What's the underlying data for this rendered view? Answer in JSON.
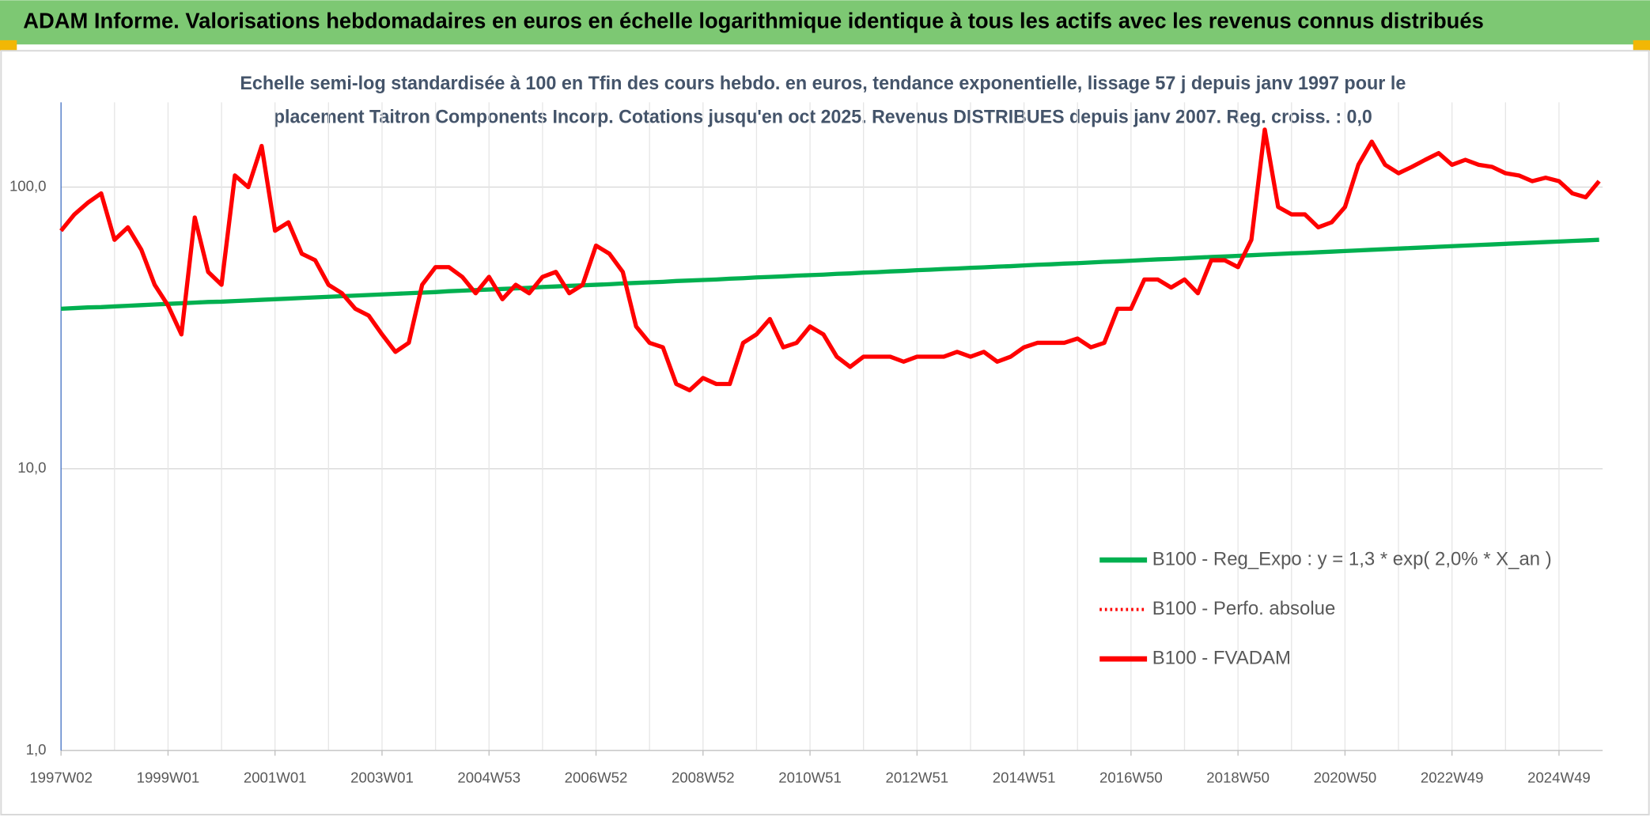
{
  "chart_data": {
    "type": "line",
    "title": "ADAM Informe. Valorisations hebdomadaires en euros en échelle logarithmique identique à tous les actifs avec les revenus connus distribués",
    "subtitle": [
      "Echelle semi-log standardisée à 100 en Tfin des cours hebdo. en euros, tendance exponentielle, lissage 57 j depuis janv 1997 pour le",
      "placement Taitron Components Incorp. Cotations jusqu'en oct 2025. Revenus DISTRIBUES depuis janv 2007. Reg. croiss. : 0,0"
    ],
    "categories": [
      "1997W02",
      null,
      null,
      null,
      null,
      null,
      null,
      null,
      "1999W01",
      null,
      null,
      null,
      null,
      null,
      null,
      null,
      "2001W01",
      null,
      null,
      null,
      null,
      null,
      null,
      null,
      "2003W01",
      null,
      null,
      null,
      null,
      null,
      null,
      null,
      "2004W53",
      null,
      null,
      null,
      null,
      null,
      null,
      null,
      "2006W52",
      null,
      null,
      null,
      null,
      null,
      null,
      null,
      "2008W52",
      null,
      null,
      null,
      null,
      null,
      null,
      null,
      "2010W51",
      null,
      null,
      null,
      null,
      null,
      null,
      null,
      "2012W51",
      null,
      null,
      null,
      null,
      null,
      null,
      null,
      "2014W51",
      null,
      null,
      null,
      null,
      null,
      null,
      null,
      "2016W50",
      null,
      null,
      null,
      null,
      null,
      null,
      null,
      "2018W50",
      null,
      null,
      null,
      null,
      null,
      null,
      null,
      "2020W50",
      null,
      null,
      null,
      null,
      null,
      null,
      null,
      "2022W49",
      null,
      null,
      null,
      null,
      null,
      null,
      null,
      "2024W49",
      null,
      null,
      null
    ],
    "series": [
      {
        "name": "B100 - Reg_Expo : y = 1,3 * exp( 2,0% *  X_an )",
        "color": "#00b050",
        "style": "solid",
        "values": [
          37.0,
          37.2,
          37.4,
          37.5,
          37.7,
          37.9,
          38.1,
          38.3,
          38.5,
          38.7,
          38.9,
          39.1,
          39.2,
          39.4,
          39.6,
          39.8,
          40.0,
          40.2,
          40.4,
          40.6,
          40.8,
          41.0,
          41.2,
          41.4,
          41.6,
          41.8,
          42.0,
          42.2,
          42.4,
          42.7,
          42.9,
          43.1,
          43.3,
          43.5,
          43.7,
          43.9,
          44.2,
          44.4,
          44.6,
          44.8,
          45.0,
          45.2,
          45.5,
          45.7,
          45.9,
          46.1,
          46.4,
          46.6,
          46.8,
          47.0,
          47.3,
          47.5,
          47.8,
          48.0,
          48.2,
          48.5,
          48.7,
          48.9,
          49.2,
          49.4,
          49.7,
          49.9,
          50.2,
          50.4,
          50.7,
          50.9,
          51.2,
          51.4,
          51.7,
          51.9,
          52.2,
          52.4,
          52.7,
          53.0,
          53.2,
          53.5,
          53.7,
          54.0,
          54.3,
          54.5,
          54.8,
          55.1,
          55.4,
          55.6,
          55.9,
          56.2,
          56.5,
          56.7,
          57.0,
          57.3,
          57.6,
          57.9,
          58.2,
          58.4,
          58.7,
          59.0,
          59.3,
          59.6,
          59.9,
          60.2,
          60.5,
          60.8,
          61.1,
          61.4,
          61.7,
          62.0,
          62.3,
          62.6,
          62.9,
          63.2,
          63.5,
          63.8,
          64.1,
          64.4,
          64.7,
          65.0
        ]
      },
      {
        "name": "B100 - Perfo. absolue",
        "color": "#ff0000",
        "style": "dotted",
        "values": [
          70,
          80,
          88,
          95,
          65,
          72,
          60,
          45,
          38,
          30,
          78,
          50,
          45,
          110,
          100,
          140,
          70,
          75,
          58,
          55,
          45,
          42,
          37,
          35,
          30,
          26,
          28,
          45,
          52,
          52,
          48,
          42,
          48,
          40,
          45,
          42,
          48,
          50,
          42,
          45,
          62,
          58,
          50,
          32,
          28,
          27,
          20,
          19,
          21,
          20,
          20,
          28,
          30,
          34,
          27,
          28,
          32,
          30,
          25,
          23,
          25,
          25,
          25,
          24,
          25,
          25,
          25,
          26,
          25,
          26,
          24,
          25,
          27,
          28,
          28,
          28,
          29,
          27,
          28,
          37,
          37,
          47,
          47,
          44,
          47,
          42,
          55,
          55,
          52,
          65,
          160,
          85,
          80,
          80,
          72,
          75,
          85,
          120,
          145,
          120,
          112,
          118,
          125,
          132,
          120,
          125,
          120,
          118,
          112,
          110,
          105,
          108,
          105,
          95,
          92,
          105
        ]
      },
      {
        "name": "B100 - FVADAM",
        "color": "#ff0000",
        "style": "solid",
        "values": [
          70,
          80,
          88,
          95,
          65,
          72,
          60,
          45,
          38,
          30,
          78,
          50,
          45,
          110,
          100,
          140,
          70,
          75,
          58,
          55,
          45,
          42,
          37,
          35,
          30,
          26,
          28,
          45,
          52,
          52,
          48,
          42,
          48,
          40,
          45,
          42,
          48,
          50,
          42,
          45,
          62,
          58,
          50,
          32,
          28,
          27,
          20,
          19,
          21,
          20,
          20,
          28,
          30,
          34,
          27,
          28,
          32,
          30,
          25,
          23,
          25,
          25,
          25,
          24,
          25,
          25,
          25,
          26,
          25,
          26,
          24,
          25,
          27,
          28,
          28,
          28,
          29,
          27,
          28,
          37,
          37,
          47,
          47,
          44,
          47,
          42,
          55,
          55,
          52,
          65,
          160,
          85,
          80,
          80,
          72,
          75,
          85,
          120,
          145,
          120,
          112,
          118,
          125,
          132,
          120,
          125,
          120,
          118,
          112,
          110,
          105,
          108,
          105,
          95,
          92,
          105
        ]
      }
    ],
    "log_scale": true,
    "ylim": [
      1,
      200
    ],
    "yticks": [
      {
        "value": 1,
        "label": "1,0"
      },
      {
        "value": 10,
        "label": "10,0"
      },
      {
        "value": 100,
        "label": "100,0"
      }
    ],
    "grid": true,
    "legend": "right"
  }
}
